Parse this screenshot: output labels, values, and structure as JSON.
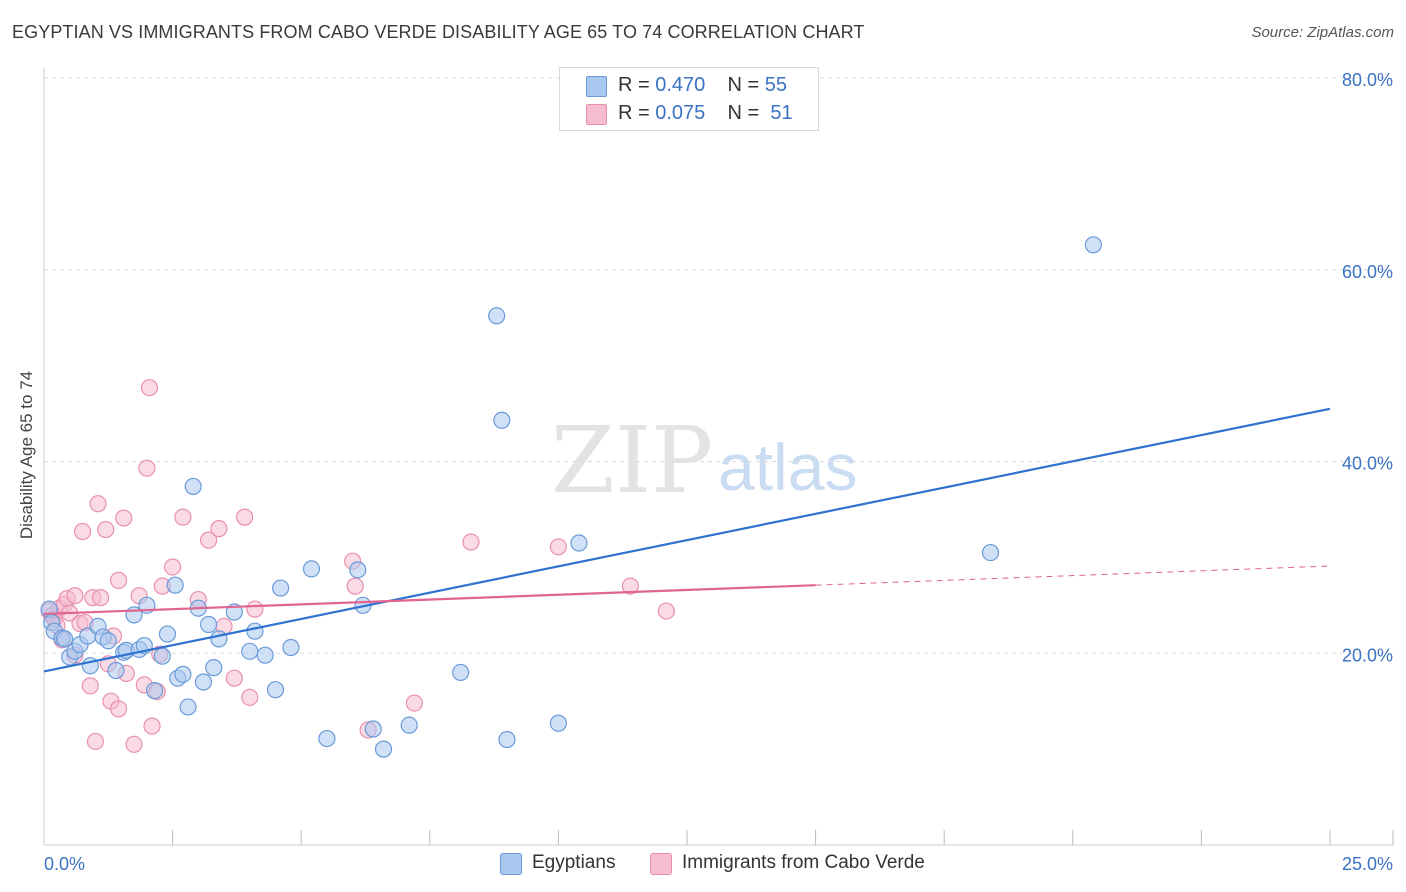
{
  "title": "EGYPTIAN VS IMMIGRANTS FROM CABO VERDE DISABILITY AGE 65 TO 74 CORRELATION CHART",
  "source": "Source: ZipAtlas.com",
  "watermark": {
    "zip": "ZIP",
    "atlas": "atlas"
  },
  "colors": {
    "blue_fill": "#a9c8f0",
    "blue_stroke": "#6a9ad8",
    "blue_line": "#2f72d0",
    "pink_fill": "#f6bcd0",
    "pink_stroke": "#e990b0",
    "pink_line": "#e0658f",
    "axis_label": "#3a72c4",
    "grid": "#dcdcdc"
  },
  "legend_top": {
    "rows": [
      {
        "series": "Egyptians",
        "r_label": "R =",
        "r_value": "0.470",
        "n_label": "N =",
        "n_value": "55"
      },
      {
        "series": "Immigrants from Cabo Verde",
        "r_label": "R =",
        "r_value": "0.075",
        "n_label": "N =",
        "n_value": "51"
      }
    ]
  },
  "legend_bottom": {
    "items": [
      "Egyptians",
      "Immigrants from Cabo Verde"
    ]
  },
  "chart_data": {
    "type": "scatter",
    "title": "EGYPTIAN VS IMMIGRANTS FROM CABO VERDE DISABILITY AGE 65 TO 74 CORRELATION CHART",
    "xlabel": "",
    "ylabel": "Disability Age 65 to 74",
    "xlim": [
      0,
      25
    ],
    "ylim": [
      0,
      80
    ],
    "x_tick_labels": [
      {
        "value": 0,
        "label": "0.0%"
      },
      {
        "value": 25,
        "label": "25.0%"
      }
    ],
    "y_tick_labels": [
      {
        "value": 20,
        "label": "20.0%"
      },
      {
        "value": 40,
        "label": "40.0%"
      },
      {
        "value": 60,
        "label": "60.0%"
      },
      {
        "value": 80,
        "label": "80.0%"
      }
    ],
    "x_minor_ticks": [
      2.5,
      5,
      7.5,
      10,
      12.5,
      15,
      17.5,
      20,
      22.5,
      25
    ],
    "grid": true,
    "legend_position": "top-center",
    "series": [
      {
        "name": "Egyptians",
        "r": 0.47,
        "n": 55,
        "trend": {
          "x0": 0,
          "y0": 18.1,
          "x1": 25,
          "y1": 45.5
        },
        "points": [
          [
            0.1,
            24.6
          ],
          [
            0.15,
            23.2
          ],
          [
            0.2,
            22.3
          ],
          [
            0.35,
            21.6
          ],
          [
            0.4,
            21.5
          ],
          [
            0.5,
            19.6
          ],
          [
            0.6,
            20.2
          ],
          [
            0.7,
            20.9
          ],
          [
            0.85,
            21.8
          ],
          [
            0.9,
            18.7
          ],
          [
            1.05,
            22.8
          ],
          [
            1.15,
            21.7
          ],
          [
            1.25,
            21.3
          ],
          [
            1.4,
            18.2
          ],
          [
            1.55,
            20.1
          ],
          [
            1.6,
            20.3
          ],
          [
            1.75,
            24.0
          ],
          [
            1.85,
            20.4
          ],
          [
            1.95,
            20.8
          ],
          [
            2.0,
            25.0
          ],
          [
            2.15,
            16.1
          ],
          [
            2.3,
            19.7
          ],
          [
            2.4,
            22.0
          ],
          [
            2.55,
            27.1
          ],
          [
            2.6,
            17.4
          ],
          [
            2.7,
            17.8
          ],
          [
            2.8,
            14.4
          ],
          [
            2.9,
            37.4
          ],
          [
            3.0,
            24.7
          ],
          [
            3.1,
            17.0
          ],
          [
            3.2,
            23.0
          ],
          [
            3.3,
            18.5
          ],
          [
            3.4,
            21.5
          ],
          [
            3.7,
            24.3
          ],
          [
            4.0,
            20.2
          ],
          [
            4.1,
            22.3
          ],
          [
            4.3,
            19.8
          ],
          [
            4.5,
            16.2
          ],
          [
            4.6,
            26.8
          ],
          [
            4.8,
            20.6
          ],
          [
            5.2,
            28.8
          ],
          [
            5.5,
            11.1
          ],
          [
            6.1,
            28.7
          ],
          [
            6.2,
            25.0
          ],
          [
            6.4,
            12.1
          ],
          [
            6.6,
            10.0
          ],
          [
            7.1,
            12.5
          ],
          [
            8.1,
            18.0
          ],
          [
            8.8,
            55.2
          ],
          [
            8.9,
            44.3
          ],
          [
            9.0,
            11.0
          ],
          [
            10.0,
            12.7
          ],
          [
            10.4,
            31.5
          ],
          [
            18.4,
            30.5
          ],
          [
            20.4,
            62.6
          ]
        ]
      },
      {
        "name": "Immigrants from Cabo Verde",
        "r": 0.075,
        "n": 51,
        "trend": {
          "x0": 0,
          "y0": 24.1,
          "x1": 15,
          "y1": 27.1,
          "dashed_to_x": 25,
          "dashed_to_y": 29.1
        },
        "points": [
          [
            0.1,
            24.4
          ],
          [
            0.15,
            23.9
          ],
          [
            0.2,
            23.6
          ],
          [
            0.25,
            22.9
          ],
          [
            0.3,
            24.7
          ],
          [
            0.35,
            21.4
          ],
          [
            0.4,
            25.1
          ],
          [
            0.45,
            25.7
          ],
          [
            0.5,
            24.2
          ],
          [
            0.6,
            26.0
          ],
          [
            0.6,
            19.8
          ],
          [
            0.7,
            23.1
          ],
          [
            0.75,
            32.7
          ],
          [
            0.8,
            23.2
          ],
          [
            0.9,
            16.6
          ],
          [
            0.95,
            25.8
          ],
          [
            1.0,
            10.8
          ],
          [
            1.05,
            35.6
          ],
          [
            1.1,
            25.8
          ],
          [
            1.2,
            32.9
          ],
          [
            1.25,
            18.9
          ],
          [
            1.3,
            15.0
          ],
          [
            1.35,
            21.8
          ],
          [
            1.45,
            27.6
          ],
          [
            1.45,
            14.2
          ],
          [
            1.55,
            34.1
          ],
          [
            1.6,
            17.9
          ],
          [
            1.75,
            10.5
          ],
          [
            1.85,
            26.0
          ],
          [
            1.95,
            16.7
          ],
          [
            2.0,
            39.3
          ],
          [
            2.05,
            47.7
          ],
          [
            2.1,
            12.4
          ],
          [
            2.2,
            16.0
          ],
          [
            2.25,
            19.9
          ],
          [
            2.3,
            27.0
          ],
          [
            2.5,
            29.0
          ],
          [
            2.7,
            34.2
          ],
          [
            3.0,
            25.6
          ],
          [
            3.2,
            31.8
          ],
          [
            3.4,
            33.0
          ],
          [
            3.5,
            22.8
          ],
          [
            3.7,
            17.4
          ],
          [
            3.9,
            34.2
          ],
          [
            4.0,
            15.4
          ],
          [
            4.1,
            24.6
          ],
          [
            6.0,
            29.6
          ],
          [
            6.05,
            27.0
          ],
          [
            6.3,
            12.0
          ],
          [
            7.2,
            14.8
          ],
          [
            8.3,
            31.6
          ]
        ]
      }
    ],
    "extra_pink_points": [
      [
        10.0,
        31.1
      ],
      [
        11.4,
        27.0
      ],
      [
        12.1,
        24.4
      ]
    ]
  }
}
